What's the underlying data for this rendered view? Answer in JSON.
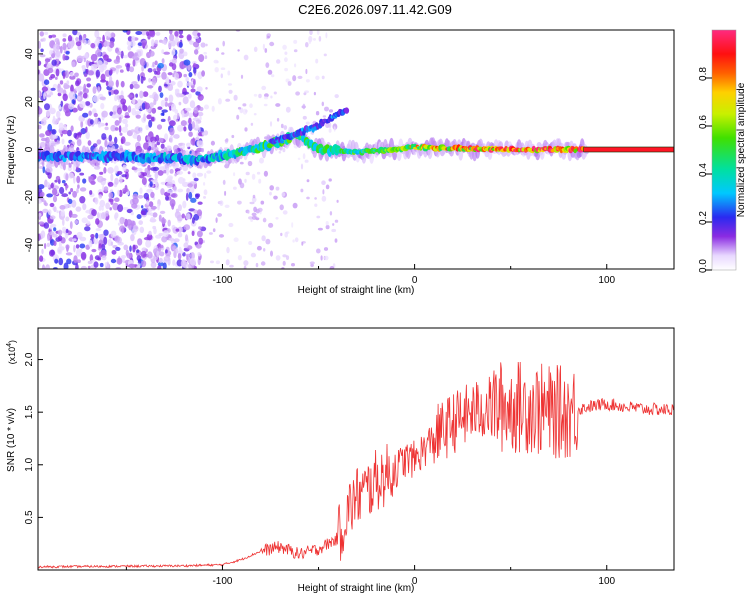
{
  "title": "C2E6.2026.097.11.42.G09",
  "colors": {
    "snr_line": "#ee3333",
    "axis": "#000000"
  },
  "chart_data": [
    {
      "type": "heatmap",
      "xlabel": "Height of straight line (km)",
      "ylabel": "Frequency (Hz)",
      "xlim": [
        -196,
        135
      ],
      "ylim": [
        -50,
        50
      ],
      "x_ticks": [
        -100,
        0,
        100
      ],
      "x_tick_labels": [
        "-100",
        "0",
        "100"
      ],
      "y_ticks": [
        -40,
        -20,
        0,
        20,
        40
      ],
      "y_tick_labels": [
        "-40",
        "-20",
        "0",
        "20",
        "40"
      ],
      "colorbar": {
        "label": "Normalized spectral amplitude",
        "range": [
          0.0,
          1.0
        ],
        "ticks": [
          0.0,
          0.2,
          0.4,
          0.6,
          0.8
        ],
        "tick_labels": [
          "0.0",
          "0.2",
          "0.4",
          "0.6",
          "0.8"
        ]
      },
      "tone_track": [
        {
          "x": -196,
          "y": -3,
          "amp": 0.25
        },
        {
          "x": -150,
          "y": -3,
          "amp": 0.3
        },
        {
          "x": -110,
          "y": -4,
          "amp": 0.35
        },
        {
          "x": -90,
          "y": -1,
          "amp": 0.45
        },
        {
          "x": -75,
          "y": 2,
          "amp": 0.5
        },
        {
          "x": -62,
          "y": 6,
          "amp": 0.55
        },
        {
          "x": -50,
          "y": 0,
          "amp": 0.45
        },
        {
          "x": -30,
          "y": -1,
          "amp": 0.5
        },
        {
          "x": -10,
          "y": 0,
          "amp": 0.65
        },
        {
          "x": 0,
          "y": 1,
          "amp": 0.7
        },
        {
          "x": 40,
          "y": 0,
          "amp": 0.85
        },
        {
          "x": 88,
          "y": 0,
          "amp": 0.9
        },
        {
          "x": 135,
          "y": 0,
          "amp": 0.95
        }
      ],
      "branch_track": [
        {
          "x": -75,
          "y": 3
        },
        {
          "x": -60,
          "y": 7
        },
        {
          "x": -45,
          "y": 12
        },
        {
          "x": -35,
          "y": 17
        }
      ]
    },
    {
      "type": "line",
      "xlabel": "Height of straight line (km)",
      "ylabel": "SNR (10 * v/v)",
      "y_multiplier": "(x10",
      "y_multiplier_exp": "4",
      "y_multiplier_close": ")",
      "xlim": [
        -196,
        135
      ],
      "ylim": [
        0,
        2.3
      ],
      "x_ticks": [
        -100,
        0,
        100
      ],
      "x_tick_labels": [
        "-100",
        "0",
        "100"
      ],
      "y_ticks": [
        0.5,
        1.0,
        1.5,
        2.0
      ],
      "y_tick_labels": [
        "0.5",
        "1.0",
        "1.5",
        "2.0"
      ],
      "series": [
        {
          "name": "SNR",
          "x": [
            -196,
            -120,
            -100,
            -90,
            -80,
            -70,
            -60,
            -50,
            -40,
            -35,
            -30,
            -25,
            -20,
            -15,
            -10,
            -5,
            0,
            5,
            10,
            20,
            30,
            40,
            50,
            60,
            70,
            80,
            90,
            100,
            110,
            120,
            135
          ],
          "y": [
            0.03,
            0.04,
            0.05,
            0.1,
            0.18,
            0.22,
            0.15,
            0.2,
            0.3,
            0.55,
            0.7,
            0.75,
            0.85,
            0.9,
            0.95,
            1.05,
            1.05,
            1.15,
            1.25,
            1.4,
            1.5,
            1.55,
            1.55,
            1.55,
            1.5,
            1.5,
            1.55,
            1.58,
            1.55,
            1.53,
            1.52
          ]
        }
      ]
    }
  ]
}
